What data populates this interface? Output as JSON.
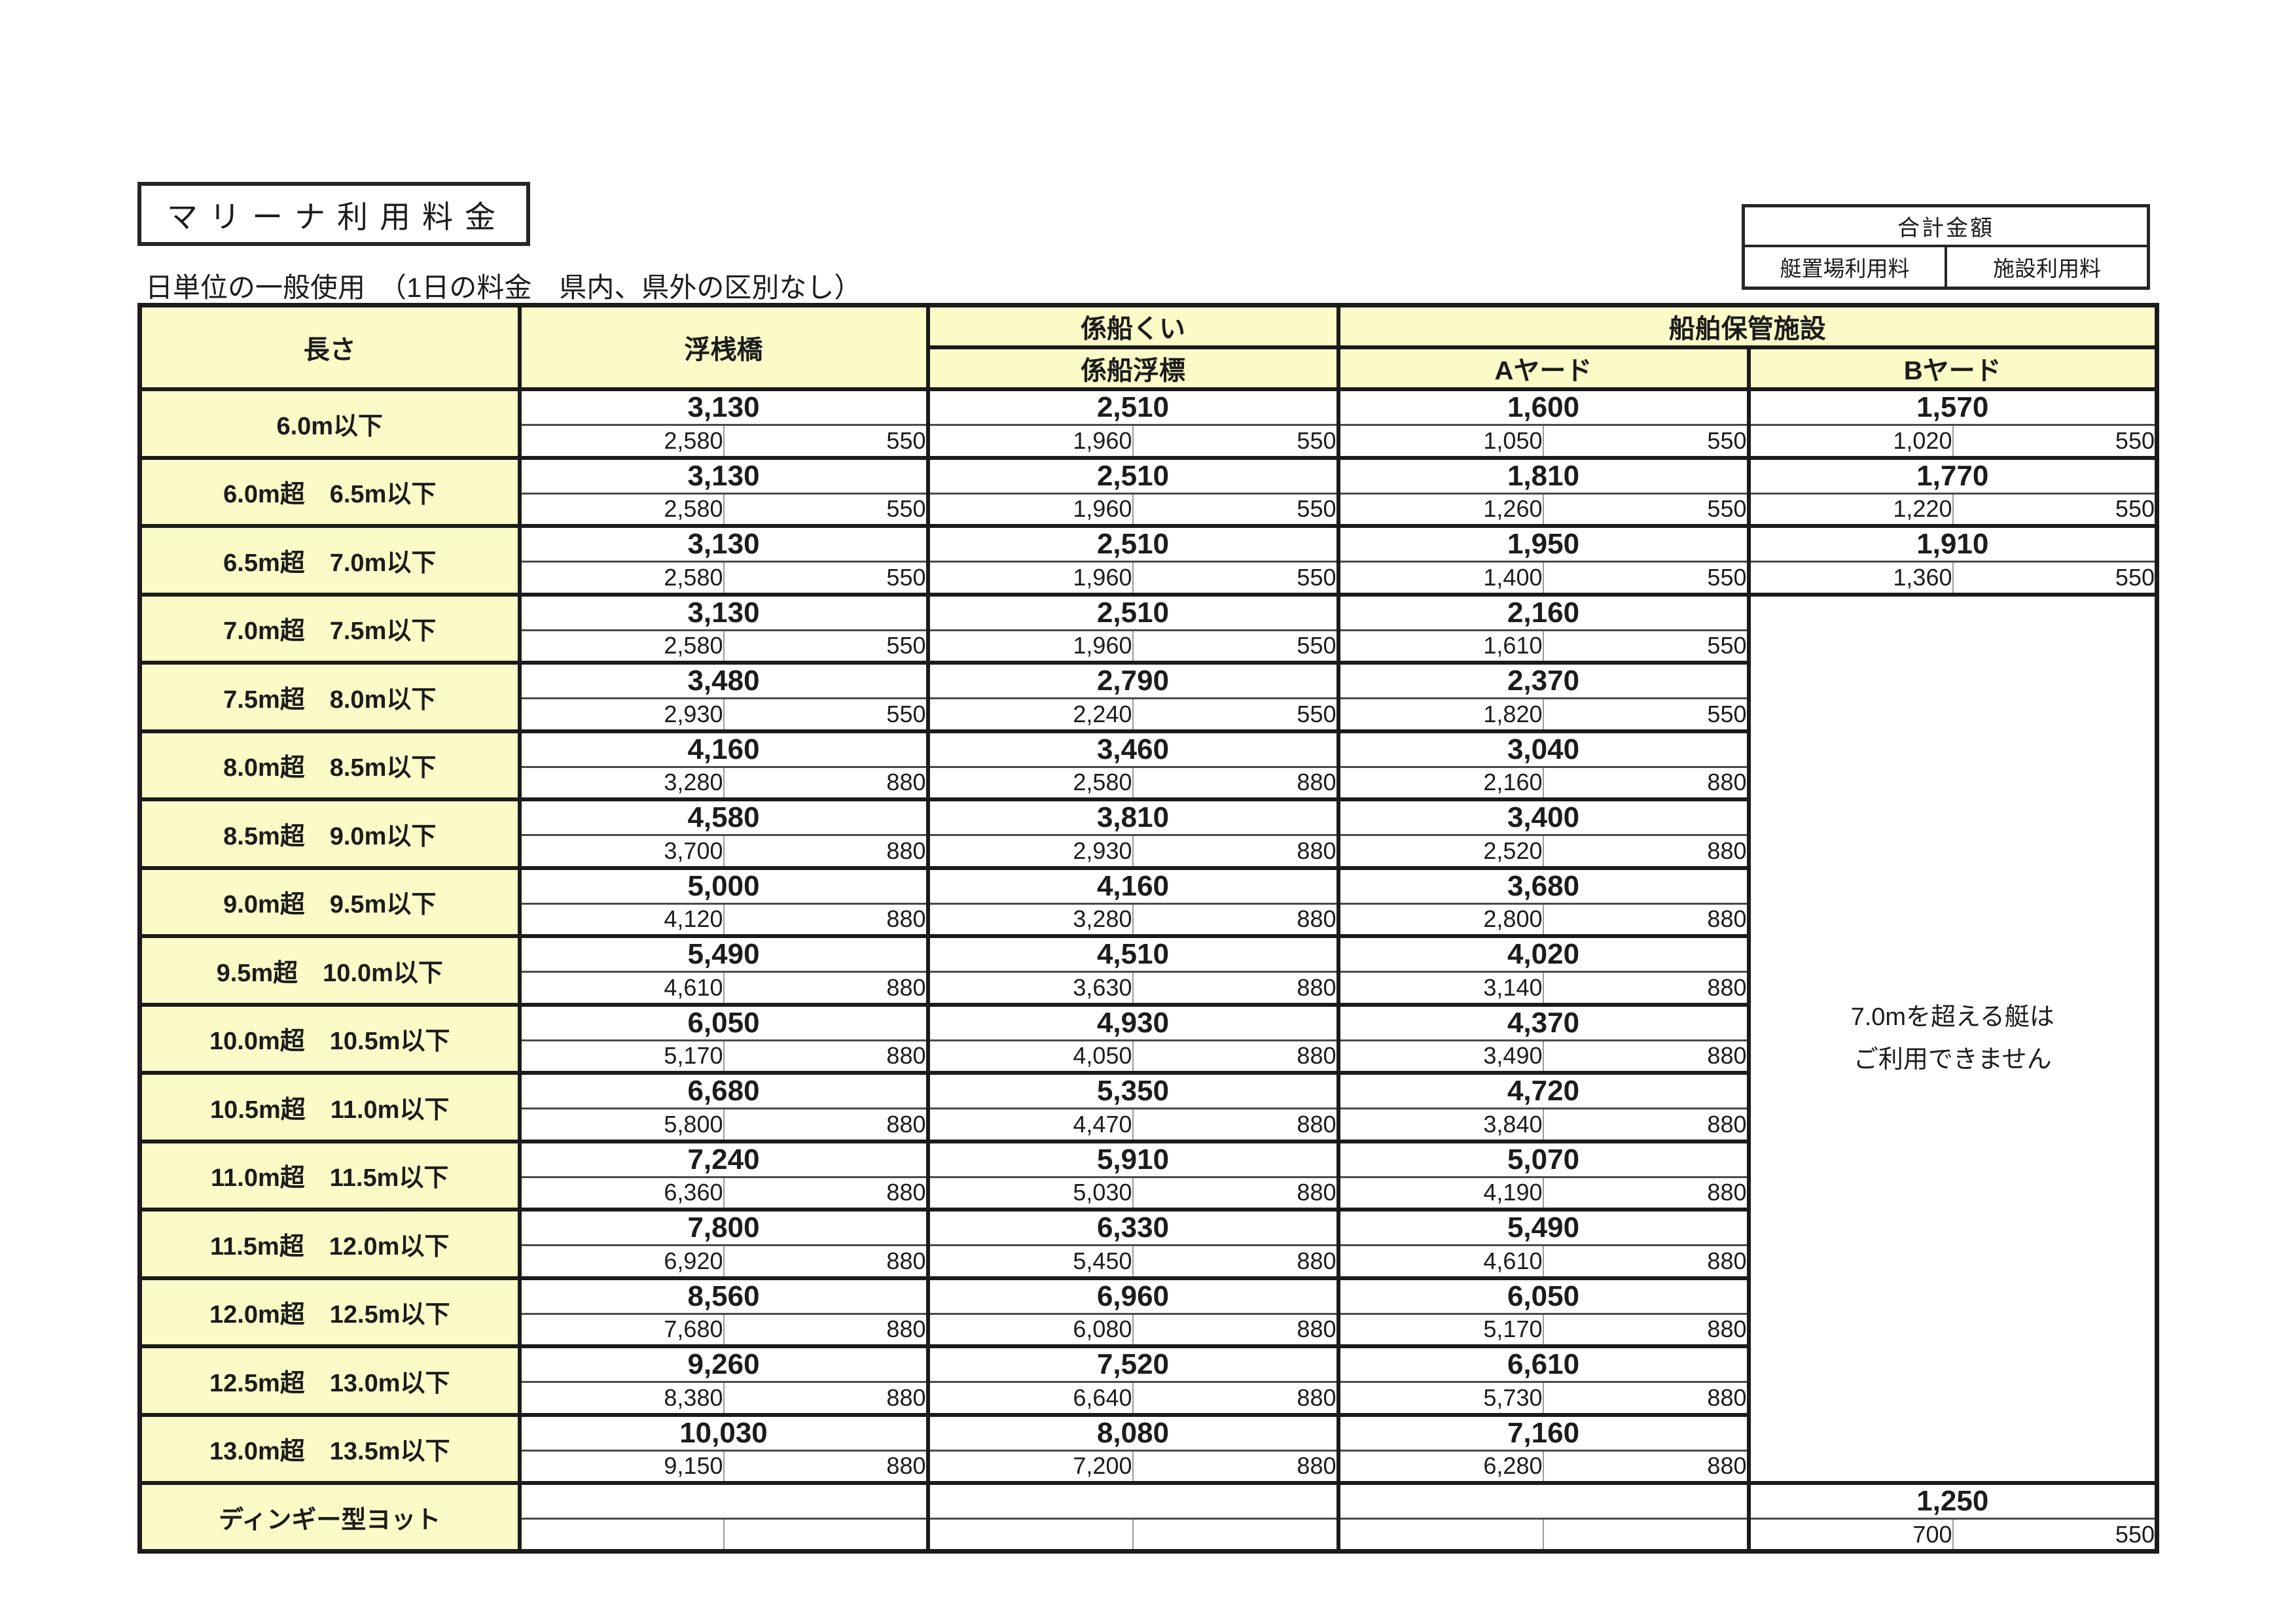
{
  "title": "マリーナ利用料金",
  "subtitle": "日単位の一般使用　（1日の料金　県内、県外の区別なし）",
  "summary_box": {
    "total_label": "合計金額",
    "berth_label": "艇置場利用料",
    "facility_label": "施設利用料"
  },
  "colors": {
    "highlight_yellow": "#fbfbc8",
    "border_black": "#1b1b1b"
  },
  "table": {
    "headers": {
      "length": "長さ",
      "pontoon": "浮桟橋",
      "mooring_pile": "係船くい",
      "mooring_buoy": "係船浮標",
      "storage": "船舶保管施設",
      "yard_a": "Aヤード",
      "yard_b": "Bヤード"
    },
    "yard_b_note_lines": [
      "7.0mを超える艇は",
      "ご利用できません"
    ],
    "note_start_row": 3,
    "note_row_count": 13,
    "rows": [
      {
        "label": "6.0m以下",
        "pontoon": {
          "total": "3,130",
          "berth": "2,580",
          "facility": "550"
        },
        "pile": {
          "total": "2,510",
          "berth": "1,960",
          "facility": "550"
        },
        "yard_a": {
          "total": "1,600",
          "berth": "1,050",
          "facility": "550"
        },
        "yard_b": {
          "total": "1,570",
          "berth": "1,020",
          "facility": "550"
        }
      },
      {
        "label": "6.0m超　6.5m以下",
        "pontoon": {
          "total": "3,130",
          "berth": "2,580",
          "facility": "550"
        },
        "pile": {
          "total": "2,510",
          "berth": "1,960",
          "facility": "550"
        },
        "yard_a": {
          "total": "1,810",
          "berth": "1,260",
          "facility": "550"
        },
        "yard_b": {
          "total": "1,770",
          "berth": "1,220",
          "facility": "550"
        }
      },
      {
        "label": "6.5m超　7.0m以下",
        "pontoon": {
          "total": "3,130",
          "berth": "2,580",
          "facility": "550"
        },
        "pile": {
          "total": "2,510",
          "berth": "1,960",
          "facility": "550"
        },
        "yard_a": {
          "total": "1,950",
          "berth": "1,400",
          "facility": "550"
        },
        "yard_b": {
          "total": "1,910",
          "berth": "1,360",
          "facility": "550"
        }
      },
      {
        "label": "7.0m超　7.5m以下",
        "pontoon": {
          "total": "3,130",
          "berth": "2,580",
          "facility": "550"
        },
        "pile": {
          "total": "2,510",
          "berth": "1,960",
          "facility": "550"
        },
        "yard_a": {
          "total": "2,160",
          "berth": "1,610",
          "facility": "550"
        },
        "yard_b": null
      },
      {
        "label": "7.5m超　8.0m以下",
        "pontoon": {
          "total": "3,480",
          "berth": "2,930",
          "facility": "550"
        },
        "pile": {
          "total": "2,790",
          "berth": "2,240",
          "facility": "550"
        },
        "yard_a": {
          "total": "2,370",
          "berth": "1,820",
          "facility": "550"
        },
        "yard_b": null
      },
      {
        "label": "8.0m超　8.5m以下",
        "pontoon": {
          "total": "4,160",
          "berth": "3,280",
          "facility": "880"
        },
        "pile": {
          "total": "3,460",
          "berth": "2,580",
          "facility": "880"
        },
        "yard_a": {
          "total": "3,040",
          "berth": "2,160",
          "facility": "880"
        },
        "yard_b": null
      },
      {
        "label": "8.5m超　9.0m以下",
        "pontoon": {
          "total": "4,580",
          "berth": "3,700",
          "facility": "880"
        },
        "pile": {
          "total": "3,810",
          "berth": "2,930",
          "facility": "880"
        },
        "yard_a": {
          "total": "3,400",
          "berth": "2,520",
          "facility": "880"
        },
        "yard_b": null
      },
      {
        "label": "9.0m超　9.5m以下",
        "pontoon": {
          "total": "5,000",
          "berth": "4,120",
          "facility": "880"
        },
        "pile": {
          "total": "4,160",
          "berth": "3,280",
          "facility": "880"
        },
        "yard_a": {
          "total": "3,680",
          "berth": "2,800",
          "facility": "880"
        },
        "yard_b": null
      },
      {
        "label": "9.5m超　10.0m以下",
        "pontoon": {
          "total": "5,490",
          "berth": "4,610",
          "facility": "880"
        },
        "pile": {
          "total": "4,510",
          "berth": "3,630",
          "facility": "880"
        },
        "yard_a": {
          "total": "4,020",
          "berth": "3,140",
          "facility": "880"
        },
        "yard_b": null
      },
      {
        "label": "10.0m超　10.5m以下",
        "pontoon": {
          "total": "6,050",
          "berth": "5,170",
          "facility": "880"
        },
        "pile": {
          "total": "4,930",
          "berth": "4,050",
          "facility": "880"
        },
        "yard_a": {
          "total": "4,370",
          "berth": "3,490",
          "facility": "880"
        },
        "yard_b": null
      },
      {
        "label": "10.5m超　11.0m以下",
        "pontoon": {
          "total": "6,680",
          "berth": "5,800",
          "facility": "880"
        },
        "pile": {
          "total": "5,350",
          "berth": "4,470",
          "facility": "880"
        },
        "yard_a": {
          "total": "4,720",
          "berth": "3,840",
          "facility": "880"
        },
        "yard_b": null
      },
      {
        "label": "11.0m超　11.5m以下",
        "pontoon": {
          "total": "7,240",
          "berth": "6,360",
          "facility": "880"
        },
        "pile": {
          "total": "5,910",
          "berth": "5,030",
          "facility": "880"
        },
        "yard_a": {
          "total": "5,070",
          "berth": "4,190",
          "facility": "880"
        },
        "yard_b": null
      },
      {
        "label": "11.5m超　12.0m以下",
        "pontoon": {
          "total": "7,800",
          "berth": "6,920",
          "facility": "880"
        },
        "pile": {
          "total": "6,330",
          "berth": "5,450",
          "facility": "880"
        },
        "yard_a": {
          "total": "5,490",
          "berth": "4,610",
          "facility": "880"
        },
        "yard_b": null
      },
      {
        "label": "12.0m超　12.5m以下",
        "pontoon": {
          "total": "8,560",
          "berth": "7,680",
          "facility": "880"
        },
        "pile": {
          "total": "6,960",
          "berth": "6,080",
          "facility": "880"
        },
        "yard_a": {
          "total": "6,050",
          "berth": "5,170",
          "facility": "880"
        },
        "yard_b": null
      },
      {
        "label": "12.5m超　13.0m以下",
        "pontoon": {
          "total": "9,260",
          "berth": "8,380",
          "facility": "880"
        },
        "pile": {
          "total": "7,520",
          "berth": "6,640",
          "facility": "880"
        },
        "yard_a": {
          "total": "6,610",
          "berth": "5,730",
          "facility": "880"
        },
        "yard_b": null
      },
      {
        "label": "13.0m超　13.5m以下",
        "pontoon": {
          "total": "10,030",
          "berth": "9,150",
          "facility": "880"
        },
        "pile": {
          "total": "8,080",
          "berth": "7,200",
          "facility": "880"
        },
        "yard_a": {
          "total": "7,160",
          "berth": "6,280",
          "facility": "880"
        },
        "yard_b": null
      },
      {
        "label": "ディンギー型ヨット",
        "pontoon": {
          "total": "",
          "berth": "",
          "facility": ""
        },
        "pile": {
          "total": "",
          "berth": "",
          "facility": ""
        },
        "yard_a": {
          "total": "",
          "berth": "",
          "facility": ""
        },
        "yard_b": {
          "total": "1,250",
          "berth": "700",
          "facility": "550"
        }
      }
    ]
  }
}
